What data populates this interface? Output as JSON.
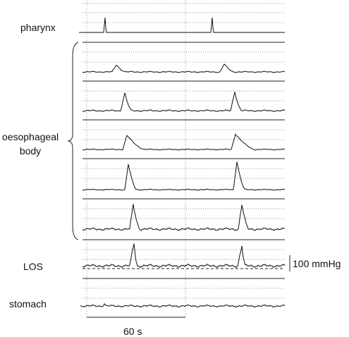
{
  "labels": {
    "pharynx": "pharynx",
    "oesophageal_body": "oesophageal body",
    "los": "LOS",
    "stomach": "stomach"
  },
  "scale": {
    "pressure": "100 mmHg",
    "time": "60 s"
  }
}
